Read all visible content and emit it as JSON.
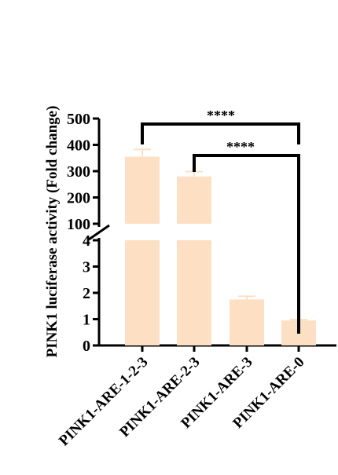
{
  "chart_data": {
    "type": "bar",
    "title": "",
    "xlabel": "",
    "ylabel": "PINK1 luciferase activity (Fold change)",
    "y_axis_break": true,
    "lower_segment": {
      "ylim": [
        0,
        4
      ],
      "ticks": [
        "0",
        "1",
        "2",
        "3",
        "4"
      ]
    },
    "upper_segment": {
      "ylim": [
        100,
        500
      ],
      "ticks": [
        "100",
        "200",
        "300",
        "400",
        "500"
      ]
    },
    "categories": [
      "PINK1-ARE-1-2-3",
      "PINK1-ARE-2-3",
      "PINK1-ARE-3",
      "PINK1-ARE-0"
    ],
    "values": [
      355,
      280,
      1.75,
      0.95
    ],
    "errors": [
      28,
      18,
      0.12,
      0.03
    ],
    "bar_color": "#fde0c4",
    "significance": [
      {
        "from": "PINK1-ARE-1-2-3",
        "to": "PINK1-ARE-0",
        "label": "****"
      },
      {
        "from": "PINK1-ARE-2-3",
        "to": "PINK1-ARE-0",
        "label": "****"
      }
    ]
  }
}
